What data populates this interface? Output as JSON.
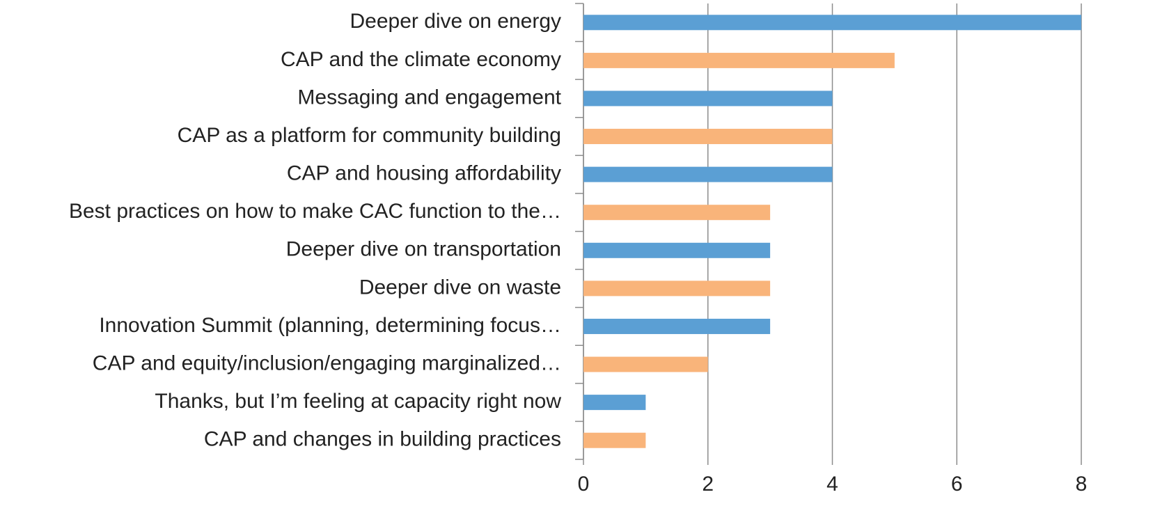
{
  "chart_data": {
    "type": "barh",
    "categories": [
      "Deeper dive on energy",
      "CAP and the climate economy",
      "Messaging and engagement",
      "CAP as a platform for community building",
      "CAP and housing affordability",
      "Best practices on how to make CAC function to the…",
      "Deeper dive on transportation",
      "Deeper dive on waste",
      "Innovation Summit (planning, determining focus…",
      "CAP and equity/inclusion/engaging marginalized…",
      "Thanks, but I’m feeling at capacity right now",
      "CAP and changes in building practices"
    ],
    "values": [
      8,
      5,
      4,
      4,
      4,
      3,
      3,
      3,
      3,
      2,
      1,
      1
    ],
    "colors": [
      "#5b9fd4",
      "#f9b47a",
      "#5b9fd4",
      "#f9b47a",
      "#5b9fd4",
      "#f9b47a",
      "#5b9fd4",
      "#f9b47a",
      "#5b9fd4",
      "#f9b47a",
      "#5b9fd4",
      "#f9b47a"
    ],
    "xlim": [
      0,
      8
    ],
    "xticks": [
      0,
      2,
      4,
      6,
      8
    ],
    "grid": true
  }
}
